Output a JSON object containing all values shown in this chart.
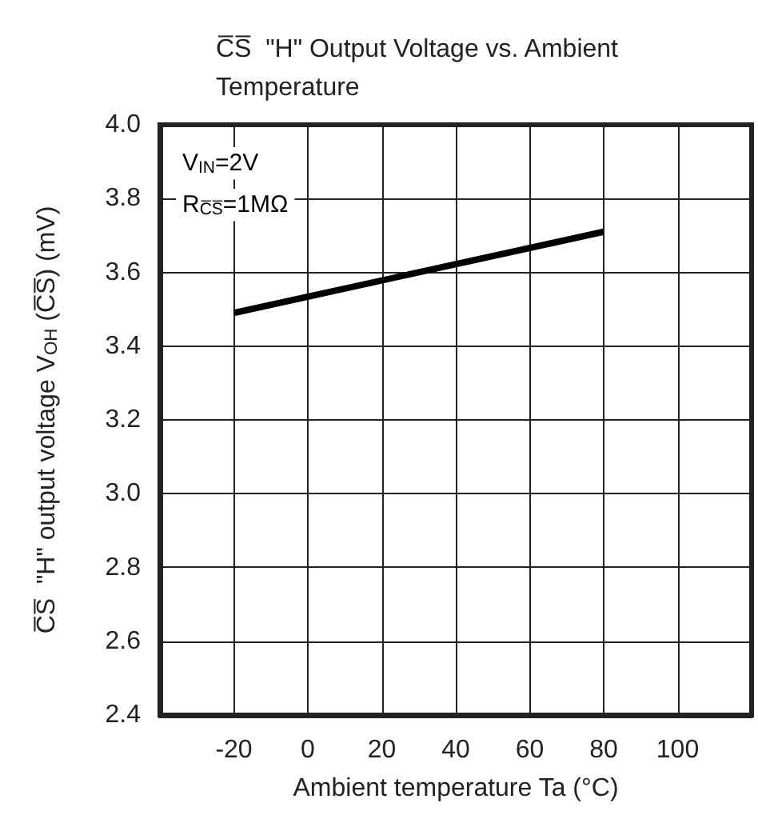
{
  "chart_data": {
    "type": "line",
    "title": "C̅S̅  \"H\" Output Voltage vs. Ambient Temperature",
    "xlabel": "Ambient temperature Ta (°C)",
    "ylabel": "C̅S̅  \"H\" output voltage V$_{OH}$ (C̅S̅) (mV)",
    "annotations": [
      "V$_{IN}$=2V",
      "R$_{C̅S̅}$=1MΩ"
    ],
    "series": [
      {
        "color": "#000000",
        "x": [
          -20,
          80
        ],
        "values": [
          3.49,
          3.71
        ]
      }
    ],
    "xlim": [
      -40,
      120
    ],
    "xticks": [
      -20,
      0,
      20,
      40,
      60,
      80,
      100
    ],
    "ylim": [
      2.4,
      4.0
    ],
    "yticks": [
      {
        "value": 2.4,
        "label": "2.4"
      },
      {
        "value": 2.6,
        "label": "2.6"
      },
      {
        "value": 2.8,
        "label": "2.8"
      },
      {
        "value": 3.0,
        "label": "3.0"
      },
      {
        "value": 3.2,
        "label": "3.2"
      },
      {
        "value": 3.4,
        "label": "3.4"
      },
      {
        "value": 3.6,
        "label": "3.6"
      },
      {
        "value": 3.8,
        "label": "3.8"
      },
      {
        "value": 4.0,
        "label": "4.0"
      }
    ],
    "grid": true,
    "marker": "none",
    "line_style": "solid"
  }
}
